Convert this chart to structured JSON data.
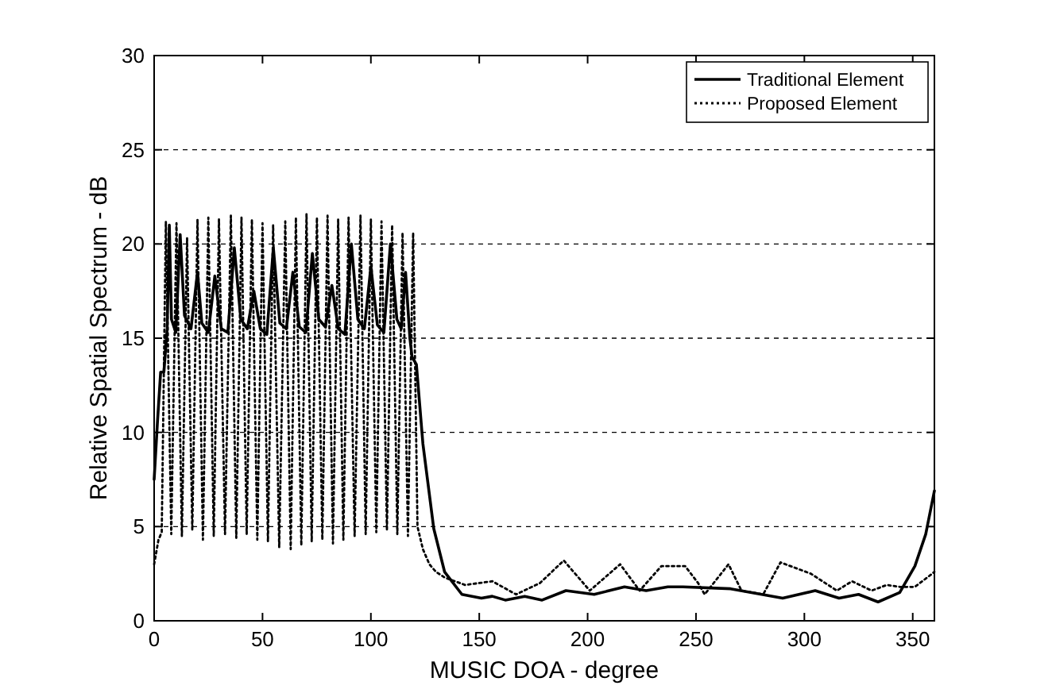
{
  "chart_data": {
    "type": "line",
    "xlabel": "MUSIC DOA - degree",
    "ylabel": "Relative Spatial Spectrum - dB",
    "xlim": [
      0,
      360
    ],
    "xticks": [
      0,
      50,
      100,
      150,
      200,
      250,
      300,
      350
    ],
    "ylim": [
      0,
      30
    ],
    "yticks": [
      0,
      5,
      10,
      15,
      20,
      25,
      30
    ],
    "grid": "y",
    "legend": "top right",
    "series": [
      {
        "name": "Traditional Element",
        "color": "#000000",
        "line_style": "solid",
        "x": [
          0,
          1.5,
          3,
          4.5,
          6,
          7,
          8,
          10,
          12,
          14,
          17,
          20,
          22,
          25,
          28,
          31,
          34,
          37,
          40,
          43,
          46,
          49,
          52,
          55,
          58,
          61,
          64,
          67,
          70,
          73,
          76,
          79,
          82,
          85,
          88,
          91,
          94,
          97,
          100,
          103,
          106,
          109,
          112,
          114,
          116,
          118,
          119,
          121,
          124,
          129,
          134,
          142,
          151,
          156,
          162,
          171,
          179,
          190,
          203,
          217,
          227,
          237,
          244,
          266,
          290,
          305,
          316,
          325,
          334,
          344,
          351,
          356,
          360
        ],
        "values": [
          7.5,
          10.5,
          13.2,
          13.2,
          15.5,
          21,
          16,
          15.3,
          20.5,
          16.2,
          15.5,
          18.5,
          15.8,
          15.3,
          18.3,
          15.5,
          15.3,
          19.8,
          16,
          15.5,
          17.5,
          15.5,
          15.2,
          19.8,
          15.8,
          15.5,
          18.5,
          15.6,
          15.3,
          19.5,
          16,
          15.6,
          17.8,
          15.5,
          15.2,
          20,
          16,
          15.5,
          18.8,
          15.7,
          15.3,
          20,
          16,
          15.5,
          18.5,
          15,
          14,
          13.6,
          9.4,
          4.9,
          2.6,
          1.4,
          1.2,
          1.3,
          1.1,
          1.3,
          1.1,
          1.6,
          1.4,
          1.8,
          1.6,
          1.8,
          1.8,
          1.7,
          1.2,
          1.6,
          1.2,
          1.4,
          1,
          1.5,
          2.9,
          4.6,
          6.9
        ]
      },
      {
        "name": "Proposed Element",
        "color": "#000000",
        "line_style": "dotted",
        "x": [
          0,
          2,
          3.5,
          5.4,
          7.9,
          10.3,
          12.8,
          15.2,
          17.6,
          20,
          22.5,
          25,
          27.5,
          29.9,
          32.7,
          35.4,
          37.9,
          40.3,
          42.7,
          45.1,
          47.6,
          50,
          52.5,
          54.9,
          57.7,
          60.5,
          63,
          65.4,
          67.9,
          70.3,
          72.7,
          75.1,
          77.6,
          80,
          82.5,
          84.9,
          87.3,
          89.7,
          92.5,
          95.2,
          97.6,
          100,
          102.5,
          104.9,
          107.4,
          109.8,
          112.2,
          114.6,
          117.1,
          119.5,
          121.5,
          124,
          127,
          130,
          134,
          143.5,
          156,
          167,
          178,
          189,
          201,
          215,
          224,
          234,
          245,
          251,
          254,
          265,
          271,
          281,
          289,
          303,
          315,
          322,
          331,
          338,
          344,
          351,
          359,
          360
        ],
        "values": [
          3,
          4.3,
          4.7,
          21.2,
          4.6,
          21.1,
          4.5,
          20.3,
          4.8,
          21.3,
          4.3,
          21.4,
          4.5,
          21.3,
          4.6,
          21.5,
          4.4,
          21.4,
          4.6,
          21.3,
          4.3,
          21.1,
          4.2,
          21,
          3.9,
          21.2,
          3.8,
          21.4,
          4,
          21.6,
          4.2,
          21.4,
          4.3,
          21.5,
          4.1,
          21.3,
          4.3,
          21.4,
          4.5,
          21.5,
          4.6,
          21.3,
          4.7,
          21.2,
          4.8,
          21,
          4.6,
          20.6,
          4.5,
          20.6,
          5,
          3.8,
          3,
          2.6,
          2.3,
          1.9,
          2.1,
          1.4,
          2,
          3.2,
          1.6,
          3,
          1.6,
          2.9,
          2.9,
          2,
          1.4,
          3,
          1.6,
          1.4,
          3.1,
          2.5,
          1.6,
          2.1,
          1.6,
          1.9,
          1.8,
          1.8,
          2.5,
          2.6
        ]
      }
    ]
  }
}
